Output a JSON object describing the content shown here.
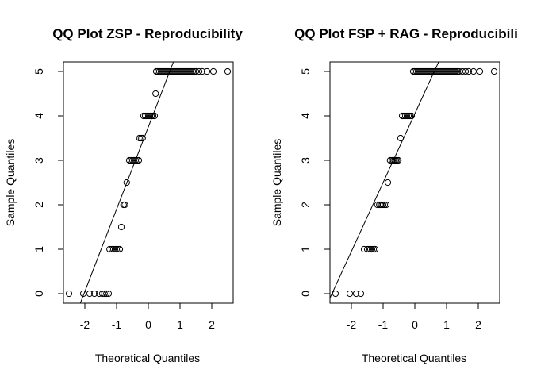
{
  "chart_data": [
    {
      "type": "scatter",
      "title": "QQ Plot ZSP - Reproducibility",
      "xlabel": "Theoretical Quantiles",
      "ylabel": "Sample Quantiles",
      "xlim": [
        -2.7,
        2.7
      ],
      "ylim": [
        -0.2,
        5.2
      ],
      "xticks": [
        "-2",
        "-1",
        "0",
        "1",
        "2"
      ],
      "yticks": [
        "0",
        "1",
        "2",
        "3",
        "4",
        "5"
      ],
      "grid": false,
      "reference_line": {
        "slope": 1.85,
        "intercept": 3.75
      },
      "points": {
        "y0": [
          -2.5,
          -2.05,
          -1.85,
          -1.7,
          -1.55,
          -1.45,
          -1.38,
          -1.32,
          -1.25
        ],
        "y1": [
          -1.22,
          -1.15,
          -1.1,
          -1.05,
          -1.0,
          -0.95,
          -0.9
        ],
        "y1_5": [
          -0.85
        ],
        "y2": [
          -0.78,
          -0.74
        ],
        "y2_5": [
          -0.68
        ],
        "y3": [
          -0.6,
          -0.55,
          -0.5,
          -0.45,
          -0.4,
          -0.35,
          -0.3
        ],
        "y3_5": [
          -0.28,
          -0.23,
          -0.18
        ],
        "y4": [
          -0.15,
          -0.1,
          -0.05,
          0.0,
          0.05,
          0.1,
          0.15,
          0.2
        ],
        "y4_5": [
          0.23
        ],
        "y5": [
          0.25,
          0.3,
          0.35,
          0.4,
          0.45,
          0.5,
          0.55,
          0.6,
          0.65,
          0.7,
          0.75,
          0.8,
          0.85,
          0.9,
          0.95,
          1.0,
          1.05,
          1.1,
          1.15,
          1.2,
          1.25,
          1.3,
          1.35,
          1.4,
          1.45,
          1.5,
          1.6,
          1.7,
          1.85,
          2.05,
          2.5
        ]
      }
    },
    {
      "type": "scatter",
      "title": "QQ Plot FSP + RAG - Reproducibili",
      "xlabel": "Theoretical Quantiles",
      "ylabel": "Sample Quantiles",
      "xlim": [
        -2.7,
        2.7
      ],
      "ylim": [
        -0.2,
        5.2
      ],
      "xticks": [
        "-2",
        "-1",
        "0",
        "1",
        "2"
      ],
      "yticks": [
        "0",
        "1",
        "2",
        "3",
        "4",
        "5"
      ],
      "grid": false,
      "reference_line": {
        "slope": 1.55,
        "intercept": 4.05
      },
      "points": {
        "y0": [
          -2.5,
          -2.05,
          -1.85,
          -1.7
        ],
        "y1": [
          -1.6,
          -1.5,
          -1.45,
          -1.4,
          -1.35,
          -1.3,
          -1.25
        ],
        "y2": [
          -1.18,
          -1.12,
          -1.08,
          -1.04,
          -1.0,
          -0.95,
          -0.9
        ],
        "y2_5": [
          -0.85
        ],
        "y3": [
          -0.78,
          -0.72,
          -0.68,
          -0.64,
          -0.6,
          -0.56,
          -0.52
        ],
        "y3_5": [
          -0.45
        ],
        "y4": [
          -0.4,
          -0.35,
          -0.3,
          -0.25,
          -0.2,
          -0.15,
          -0.1
        ],
        "y5": [
          -0.05,
          0.0,
          0.05,
          0.1,
          0.15,
          0.2,
          0.25,
          0.3,
          0.35,
          0.4,
          0.45,
          0.5,
          0.55,
          0.6,
          0.65,
          0.7,
          0.75,
          0.8,
          0.85,
          0.9,
          0.95,
          1.0,
          1.05,
          1.1,
          1.15,
          1.2,
          1.25,
          1.3,
          1.35,
          1.4,
          1.5,
          1.6,
          1.7,
          1.85,
          2.05,
          2.5
        ]
      }
    }
  ]
}
